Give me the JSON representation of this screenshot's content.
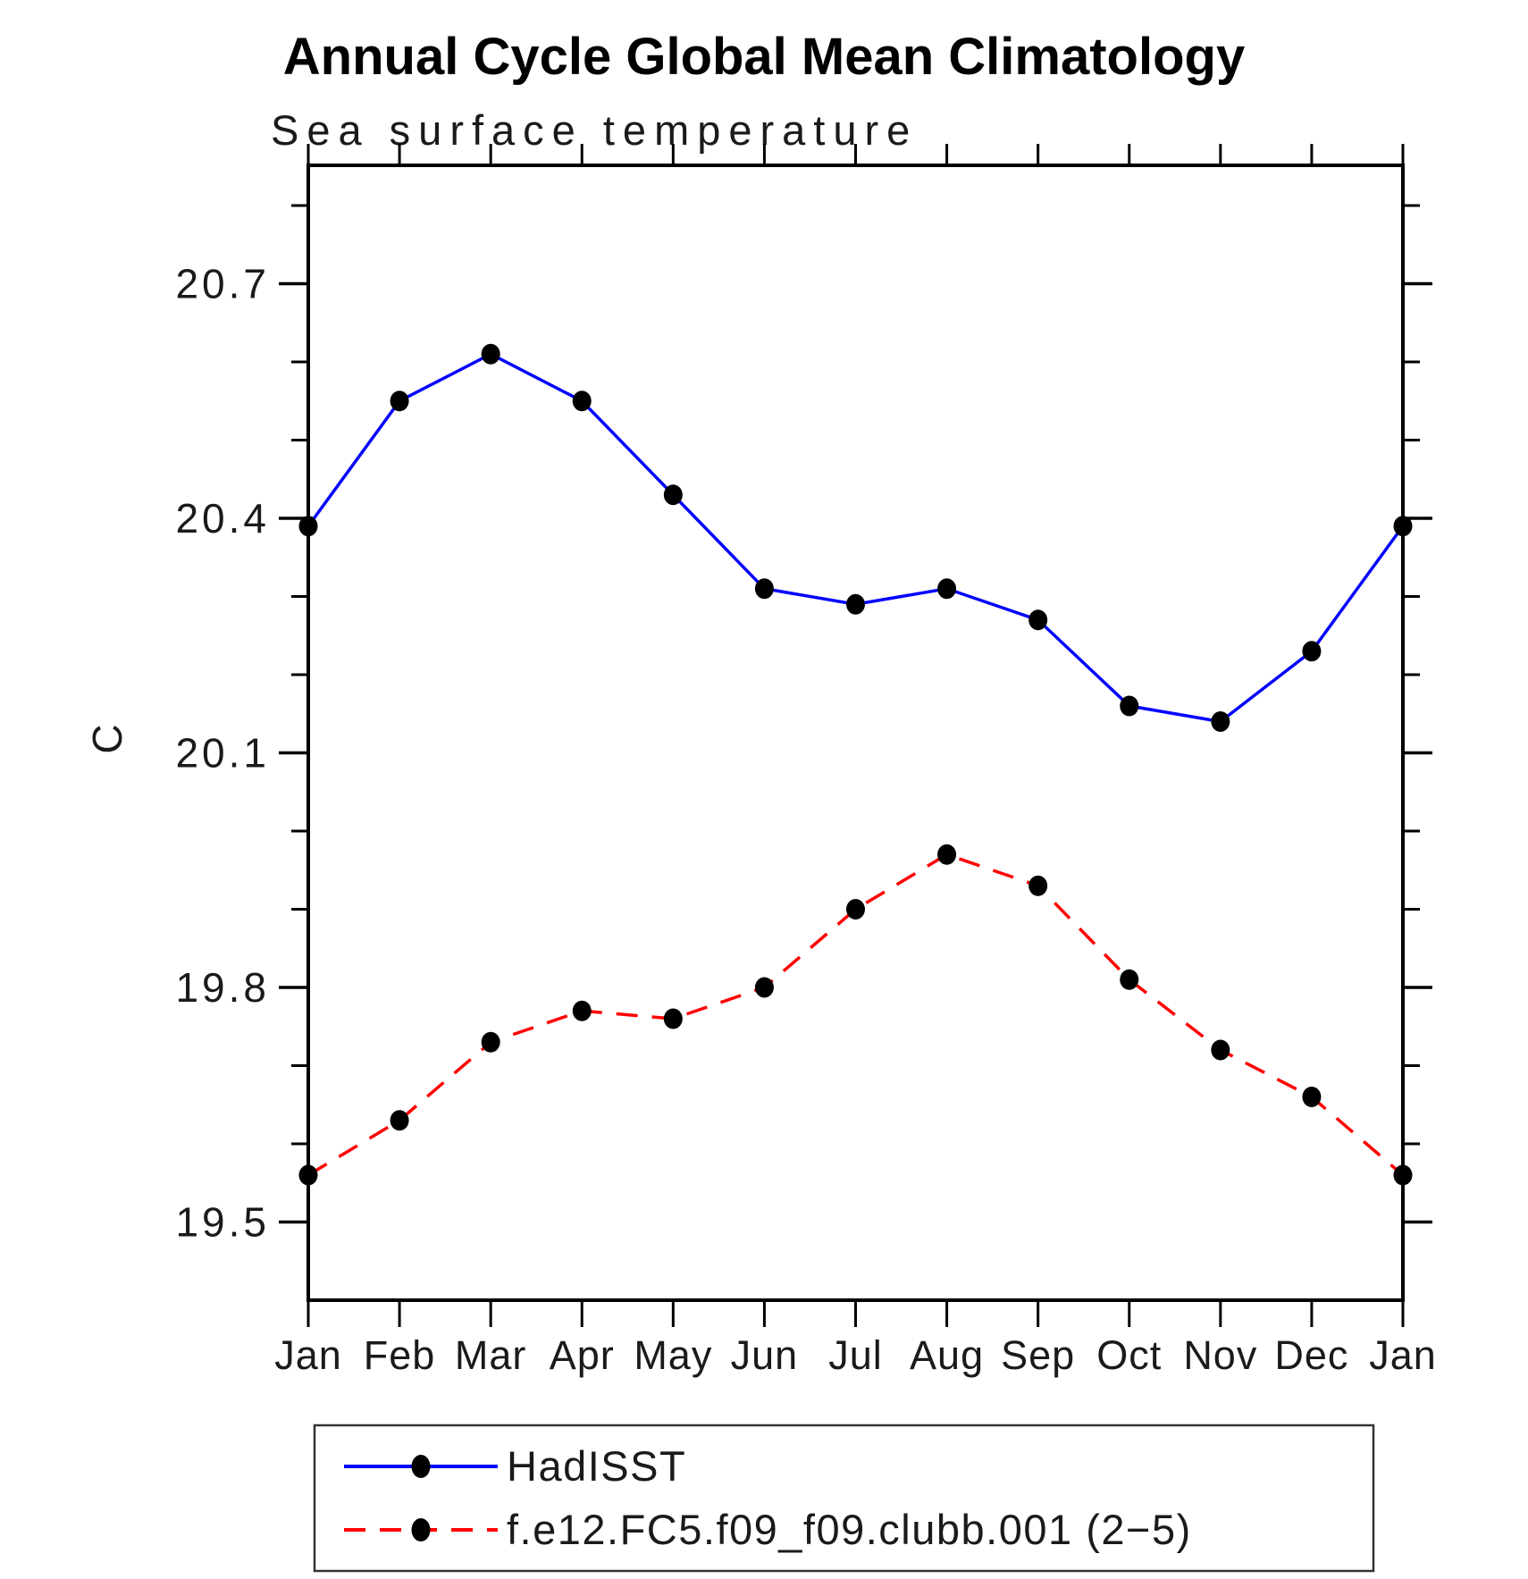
{
  "title": "Annual Cycle Global Mean Climatology",
  "subtitle": "Sea surface temperature",
  "ylabel": "C",
  "chart_data": {
    "type": "line",
    "categories": [
      "Jan",
      "Feb",
      "Mar",
      "Apr",
      "May",
      "Jun",
      "Jul",
      "Aug",
      "Sep",
      "Oct",
      "Nov",
      "Dec",
      "Jan"
    ],
    "series": [
      {
        "name": "HadISST",
        "color": "#0000ff",
        "line_style": "solid",
        "marker": "filled-circle",
        "marker_color": "#000000",
        "values": [
          20.39,
          20.55,
          20.61,
          20.55,
          20.43,
          20.31,
          20.29,
          20.31,
          20.27,
          20.16,
          20.14,
          20.23,
          20.39
        ]
      },
      {
        "name": "f.e12.FC5.f09_f09.clubb.001 (2−5)",
        "color": "#ff0000",
        "line_style": "dashed",
        "marker": "filled-circle",
        "marker_color": "#000000",
        "values": [
          19.56,
          19.63,
          19.73,
          19.77,
          19.76,
          19.8,
          19.9,
          19.97,
          19.93,
          19.81,
          19.72,
          19.66,
          19.56
        ]
      }
    ],
    "ylim": [
      19.4,
      20.852
    ],
    "yticks_major": [
      19.5,
      19.8,
      20.1,
      20.4,
      20.7
    ],
    "ytick_minor_step": 0.1,
    "ytick_minor_max": 20.8,
    "grid": false,
    "legend_position": "bottom"
  }
}
